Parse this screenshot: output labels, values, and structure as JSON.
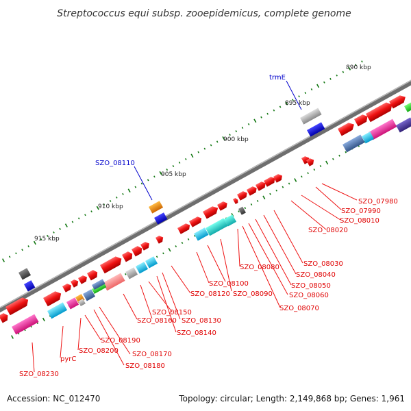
{
  "title": "Streptococcus equi subsp. zooepidemicus, complete genome",
  "accession": "Accession: NC_012470",
  "summary": "Topology: circular; Length: 2,149,868 bp; Genes: 1,961",
  "scale_labels": [
    "890 kbp",
    "895 kbp",
    "900 kbp",
    "905 kbp",
    "910 kbp",
    "915 kbp"
  ],
  "gene_labels_red": [
    "SZO_07980",
    "SZO_07990",
    "SZO_08010",
    "SZO_08020",
    "SZO_08030",
    "SZO_08040",
    "SZO_08050",
    "SZO_08060",
    "SZO_08070",
    "SZO_08080",
    "SZO_08090",
    "SZO_08100",
    "SZO_08120",
    "SZO_08130",
    "SZO_08140",
    "SZO_08150",
    "SZO_08160",
    "SZO_08170",
    "SZO_08180",
    "SZO_08190",
    "SZO_08200",
    "SZO_08230",
    "pyrC"
  ],
  "gene_labels_blue": [
    "trmE",
    "SZO_08110"
  ],
  "colors": {
    "red_gene": "#ee1111",
    "blue_gene": "#0000cc",
    "pink": "#ee2299",
    "cyan": "#11bbee",
    "teal": "#22cccc",
    "orange": "#ee8800",
    "gray_gene": "#888888",
    "track": "#7a7a7a",
    "tick": "#117711",
    "label_line": "#ee0000"
  }
}
